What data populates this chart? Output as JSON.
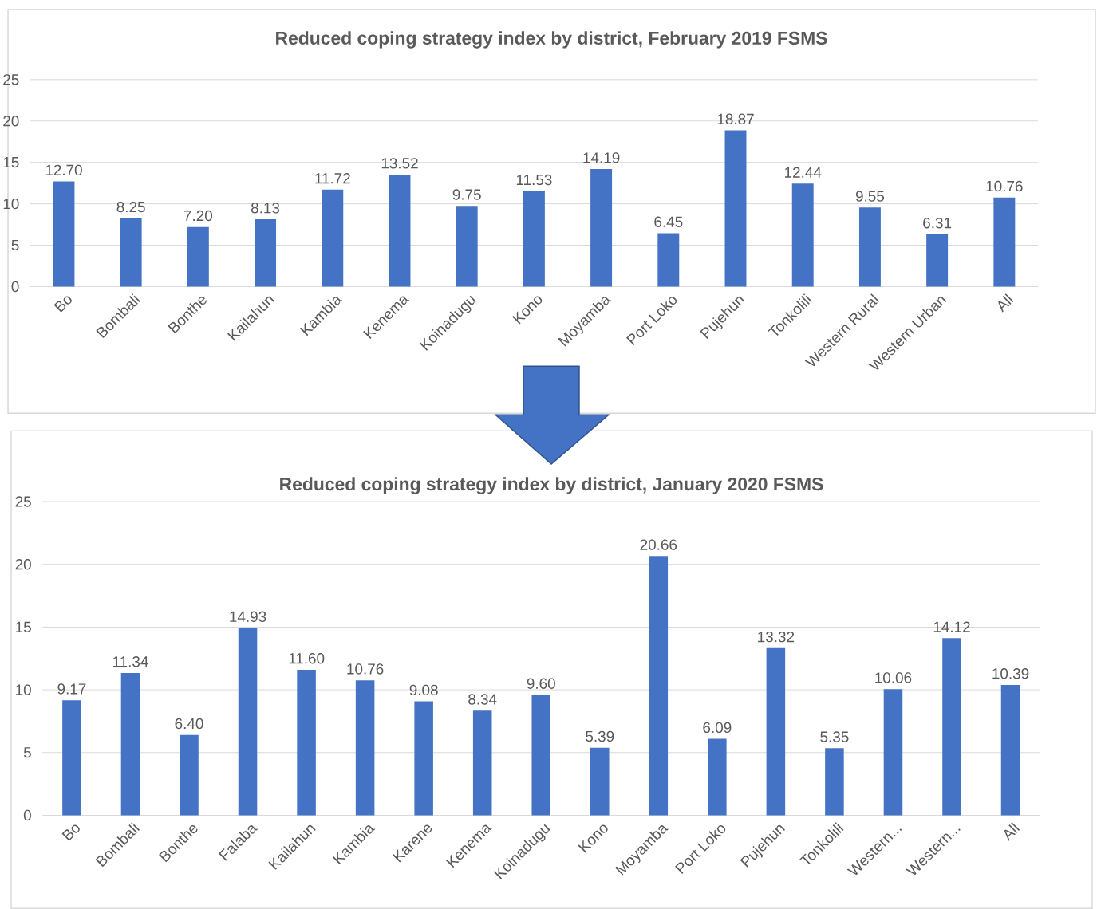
{
  "chart_data": [
    {
      "type": "bar",
      "title": "Reduced coping strategy index by district, February 2019 FSMS",
      "categories": [
        "Bo",
        "Bombali",
        "Bonthe",
        "Kailahun",
        "Kambia",
        "Kenema",
        "Koinadugu",
        "Kono",
        "Moyamba",
        "Port Loko",
        "Pujehun",
        "Tonkolili",
        "Western Rural",
        "Western Urban",
        "All"
      ],
      "values": [
        12.7,
        8.25,
        7.2,
        8.13,
        11.72,
        13.52,
        9.75,
        11.53,
        14.19,
        6.45,
        18.87,
        12.44,
        9.55,
        6.31,
        10.76
      ],
      "value_labels": [
        "12.70",
        "8.25",
        "7.20",
        "8.13",
        "11.72",
        "13.52",
        "9.75",
        "11.53",
        "14.19",
        "6.45",
        "18.87",
        "12.44",
        "9.55",
        "6.31",
        "10.76"
      ],
      "color": "#4472c4",
      "ylim": [
        0,
        25
      ],
      "yticks": [
        0,
        5,
        10,
        15,
        20,
        25
      ],
      "grid": "y"
    },
    {
      "type": "bar",
      "title": "Reduced coping strategy index by district, January 2020 FSMS",
      "categories": [
        "Bo",
        "Bombali",
        "Bonthe",
        "Falaba",
        "Kailahun",
        "Kambia",
        "Karene",
        "Kenema",
        "Koinadugu",
        "Kono",
        "Moyamba",
        "Port Loko",
        "Pujehun",
        "Tonkolili",
        "Western...",
        "Western...",
        "All"
      ],
      "values": [
        9.17,
        11.34,
        6.4,
        14.93,
        11.6,
        10.76,
        9.08,
        8.34,
        9.6,
        5.39,
        20.66,
        6.09,
        13.32,
        5.35,
        10.06,
        14.12,
        10.39
      ],
      "value_labels": [
        "9.17",
        "11.34",
        "6.40",
        "14.93",
        "11.60",
        "10.76",
        "9.08",
        "8.34",
        "9.60",
        "5.39",
        "20.66",
        "6.09",
        "13.32",
        "5.35",
        "10.06",
        "14.12",
        "10.39"
      ],
      "color": "#4472c4",
      "ylim": [
        0,
        25
      ],
      "yticks": [
        0,
        5,
        10,
        15,
        20,
        25
      ],
      "grid": "y"
    }
  ]
}
